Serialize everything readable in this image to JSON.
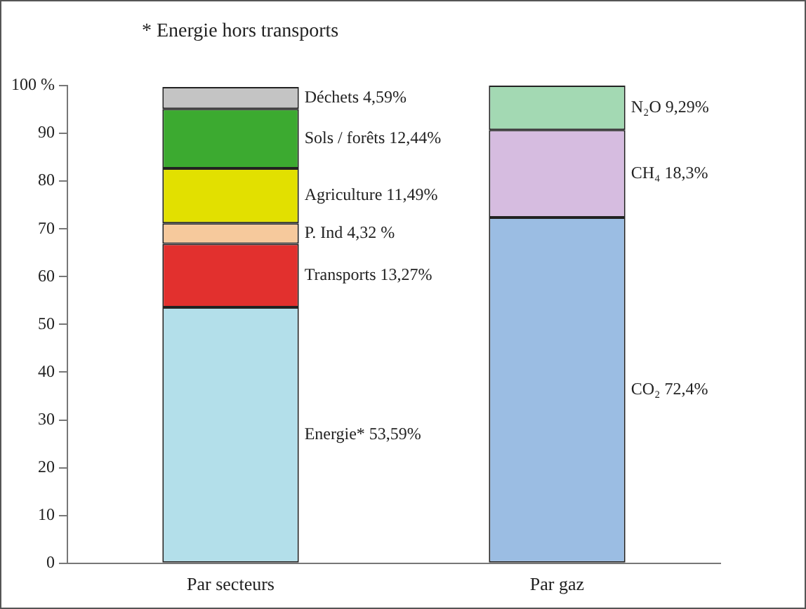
{
  "chart_data": {
    "type": "bar",
    "stacked": true,
    "annotations": [
      "* Energie hors transports"
    ],
    "categories": [
      "Par secteurs",
      "Par gaz"
    ],
    "ylim": [
      0,
      100
    ],
    "yticks": [
      0,
      10,
      20,
      30,
      40,
      50,
      60,
      70,
      80,
      90,
      {
        "value": 100,
        "label": "100 %"
      }
    ],
    "grid": false,
    "legend": false,
    "series": [
      {
        "name": "Energie*",
        "color": "#b3dfea",
        "values": [
          53.59,
          null
        ],
        "value_labels": [
          "53,59%",
          null
        ]
      },
      {
        "name": "Transports",
        "color": "#e2302e",
        "values": [
          13.27,
          null
        ],
        "value_labels": [
          "13,27%",
          null
        ]
      },
      {
        "name": "P. Ind",
        "color": "#f6c99c",
        "values": [
          4.32,
          null
        ],
        "value_labels": [
          "4,32 %",
          null
        ]
      },
      {
        "name": "Agriculture",
        "color": "#e2e000",
        "values": [
          11.49,
          null
        ],
        "value_labels": [
          "11,49%",
          null
        ]
      },
      {
        "name": "Sols / forêts",
        "color": "#3caa30",
        "values": [
          12.44,
          null
        ],
        "value_labels": [
          "12,44%",
          null
        ]
      },
      {
        "name": "Déchets",
        "color": "#c4c4c4",
        "values": [
          4.59,
          null
        ],
        "value_labels": [
          "4,59%",
          null
        ]
      },
      {
        "name": "CO₂",
        "color": "#9bbde3",
        "values": [
          null,
          72.4
        ],
        "value_labels": [
          null,
          "72,4%"
        ]
      },
      {
        "name": "CH₄",
        "color": "#d6bce0",
        "values": [
          null,
          18.3
        ],
        "value_labels": [
          null,
          "18,3%"
        ]
      },
      {
        "name": "N₂O",
        "color": "#a3d9b3",
        "values": [
          null,
          9.29
        ],
        "value_labels": [
          null,
          "9,29%"
        ]
      }
    ]
  }
}
